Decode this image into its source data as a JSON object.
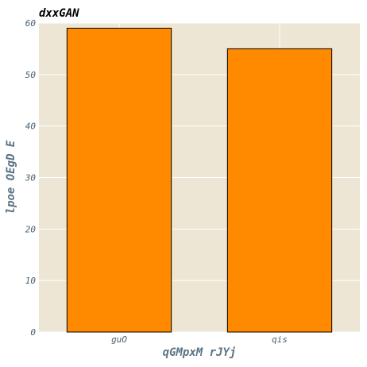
{
  "chart_data": {
    "type": "bar",
    "title": "dxxGAN",
    "xlabel": "qGMpxM rJYj",
    "ylabel": "lpoe OEgD E",
    "categories": [
      "guO",
      "qis"
    ],
    "values": [
      59,
      55
    ],
    "ylim": [
      0,
      60
    ],
    "yticks": [
      0,
      10,
      20,
      30,
      40,
      50,
      60
    ],
    "grid": true,
    "colors": {
      "bar": "#ff8a00",
      "bar_edge": "#000000",
      "plot_background": "#ede6d4",
      "grid": "#ffffff"
    }
  }
}
